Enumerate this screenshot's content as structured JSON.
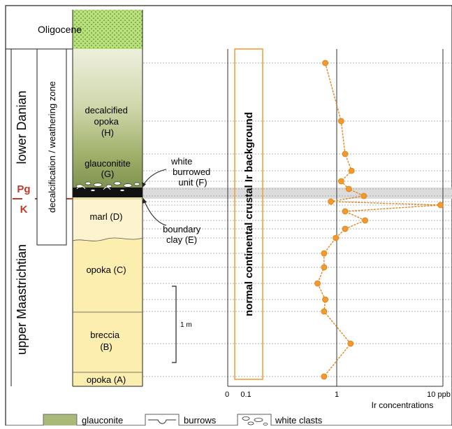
{
  "colors": {
    "yellow": "#fbeeae",
    "olive_light": "#d9ddb8",
    "olive_mid": "#a9b97a",
    "olive_dark": "#8ea15c",
    "green_bright": "#b9e07a",
    "orange": "#f29a2e",
    "orange_dark": "#e07f12",
    "boundary_red": "#c0392b",
    "ink": "#222222",
    "grey_band": "#dcdcdc"
  },
  "epochs": {
    "oligocene": "Oligocene",
    "lower_danian": "lower  Danian",
    "upper_maastrichtian": "upper  Maastrichtian"
  },
  "boundary": {
    "pg": "Pg",
    "k": "K"
  },
  "weathering_zone": "decalcification / weathering zone",
  "units": {
    "h": [
      "decalcified",
      "opoka",
      "(H)"
    ],
    "g": "glauconitite",
    "g_letter": "(G)",
    "d": "marl (D)",
    "c": "opoka (C)",
    "b": [
      "breccia",
      "(B)"
    ],
    "a": "opoka (A)"
  },
  "callouts": {
    "f": [
      "white",
      "burrowed",
      "unit (F)"
    ],
    "e": [
      "boundary",
      "clay (E)"
    ]
  },
  "scale_bar": "1 m",
  "background_label": "normal  continental  crustal  Ir  background",
  "chart_data": {
    "type": "scatter",
    "xscale": "log",
    "xlabel": "Ir concentrations",
    "tick_labels": [
      "0",
      "0.1",
      "1",
      "10 ppb"
    ],
    "background_band": [
      0.1,
      0.28
    ],
    "series": [
      {
        "values": [
          0.78,
          1.1,
          1.2,
          1.38,
          1.1,
          1.3,
          1.8,
          0.88,
          9.5,
          1.2,
          1.85,
          1.2,
          0.98,
          0.76,
          0.76,
          0.66,
          0.78,
          0.76,
          1.35,
          0.76
        ]
      }
    ]
  },
  "legend": [
    {
      "label": "glauconite",
      "icon": "glauconite-swatch"
    },
    {
      "label": "burrows",
      "icon": "burrows-symbol"
    },
    {
      "label": "white clasts",
      "icon": "white-clasts-symbol"
    }
  ]
}
